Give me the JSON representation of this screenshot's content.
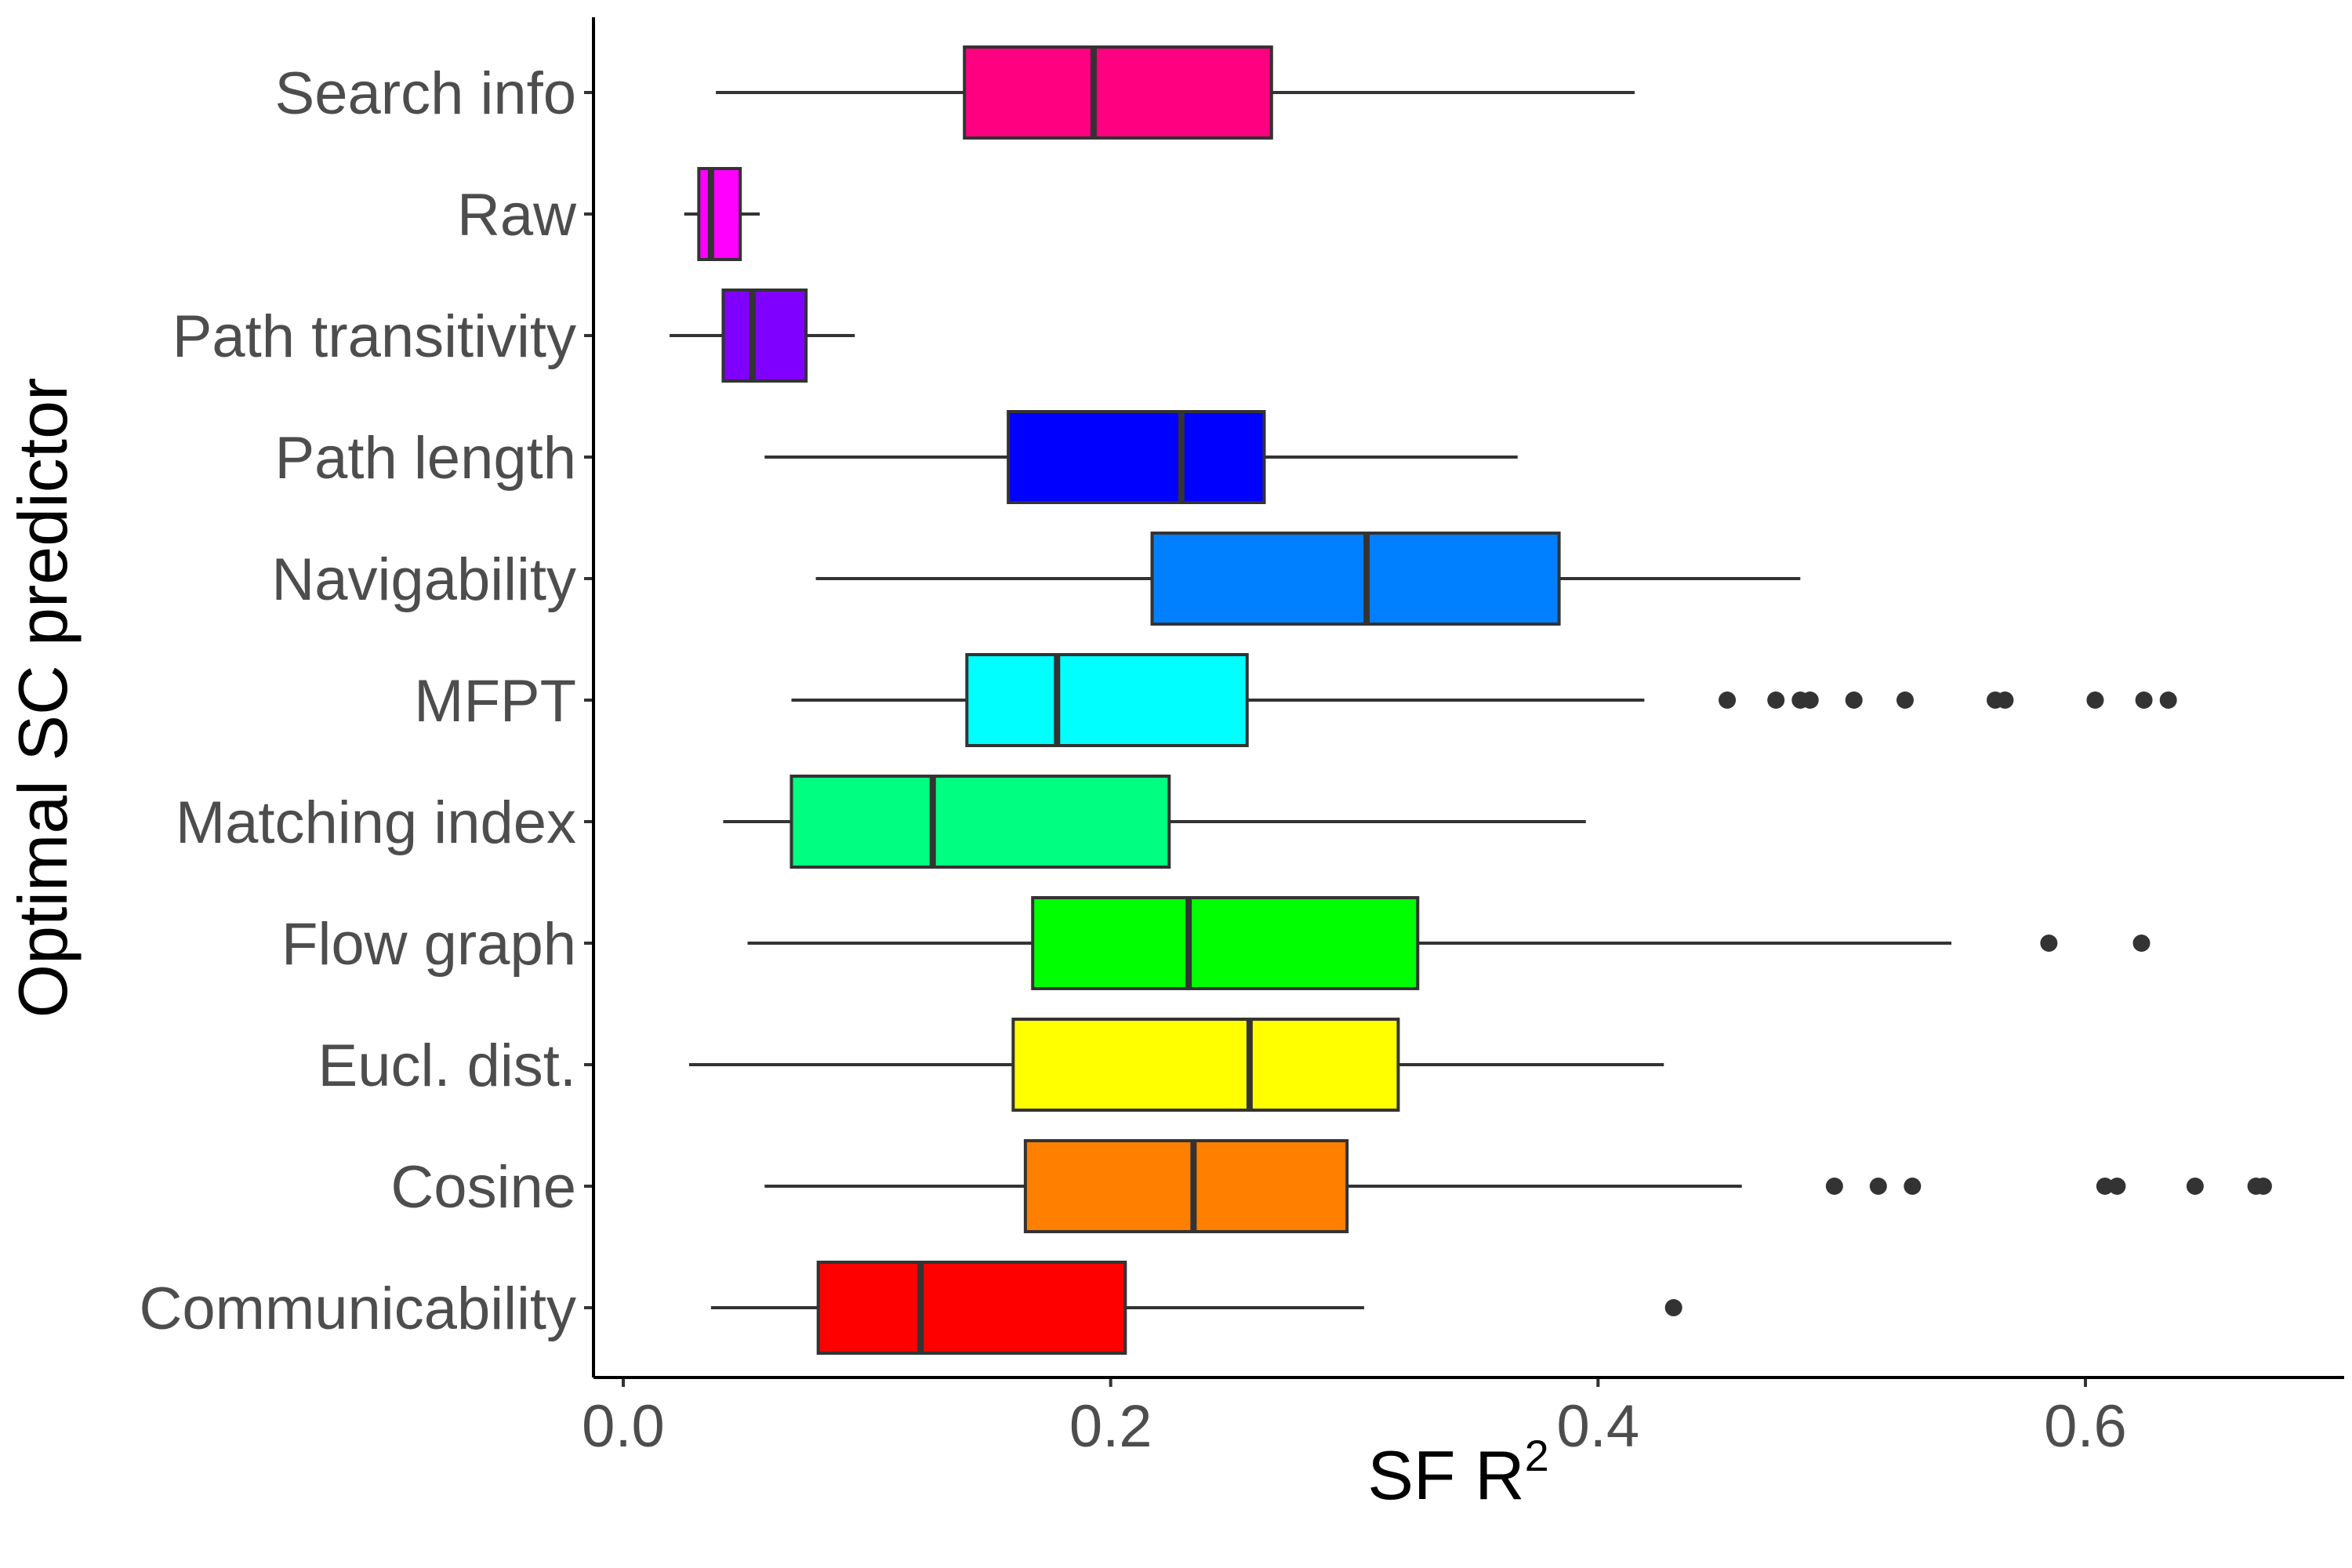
{
  "chart_data": {
    "type": "boxplot",
    "orientation": "horizontal",
    "xlabel": "SF R",
    "xlabel_superscript": "2",
    "ylabel": "Optimal SC predictor",
    "xlim": [
      -0.012,
      0.7
    ],
    "xticks": [
      0.0,
      0.2,
      0.4,
      0.6
    ],
    "xtick_labels": [
      "0.0",
      "0.2",
      "0.4",
      "0.6"
    ],
    "grid": false,
    "legend": "none",
    "categories": [
      "Search info",
      "Raw",
      "Path transitivity",
      "Path length",
      "Navigability",
      "MFPT",
      "Matching index",
      "Flow graph",
      "Eucl. dist.",
      "Cosine",
      "Communicability"
    ],
    "series": [
      {
        "category": "Search info",
        "color": "#FF0080",
        "whisker_low": 0.038,
        "q1": 0.14,
        "median": 0.193,
        "q3": 0.266,
        "whisker_high": 0.415,
        "outliers": []
      },
      {
        "category": "Raw",
        "color": "#FF00FF",
        "whisker_low": 0.025,
        "q1": 0.031,
        "median": 0.036,
        "q3": 0.048,
        "whisker_high": 0.056,
        "outliers": []
      },
      {
        "category": "Path transitivity",
        "color": "#8000FF",
        "whisker_low": 0.019,
        "q1": 0.041,
        "median": 0.053,
        "q3": 0.075,
        "whisker_high": 0.095,
        "outliers": []
      },
      {
        "category": "Path length",
        "color": "#0000FF",
        "whisker_low": 0.058,
        "q1": 0.158,
        "median": 0.229,
        "q3": 0.263,
        "whisker_high": 0.367,
        "outliers": []
      },
      {
        "category": "Navigability",
        "color": "#0080FF",
        "whisker_low": 0.079,
        "q1": 0.217,
        "median": 0.305,
        "q3": 0.384,
        "whisker_high": 0.483,
        "outliers": []
      },
      {
        "category": "MFPT",
        "color": "#00FFFF",
        "whisker_low": 0.069,
        "q1": 0.141,
        "median": 0.178,
        "q3": 0.256,
        "whisker_high": 0.419,
        "outliers": [
          0.453,
          0.473,
          0.483,
          0.487,
          0.505,
          0.526,
          0.563,
          0.567,
          0.604,
          0.624,
          0.634
        ]
      },
      {
        "category": "Matching index",
        "color": "#00FF80",
        "whisker_low": 0.041,
        "q1": 0.069,
        "median": 0.127,
        "q3": 0.224,
        "whisker_high": 0.395,
        "outliers": []
      },
      {
        "category": "Flow graph",
        "color": "#00FF00",
        "whisker_low": 0.051,
        "q1": 0.168,
        "median": 0.232,
        "q3": 0.326,
        "whisker_high": 0.545,
        "outliers": [
          0.585,
          0.623
        ]
      },
      {
        "category": "Eucl. dist.",
        "color": "#FFFF00",
        "whisker_low": 0.027,
        "q1": 0.16,
        "median": 0.257,
        "q3": 0.318,
        "whisker_high": 0.427,
        "outliers": []
      },
      {
        "category": "Cosine",
        "color": "#FF8000",
        "whisker_low": 0.058,
        "q1": 0.165,
        "median": 0.234,
        "q3": 0.297,
        "whisker_high": 0.459,
        "outliers": [
          0.497,
          0.515,
          0.529,
          0.608,
          0.613,
          0.645,
          0.67,
          0.673
        ]
      },
      {
        "category": "Communicability",
        "color": "#FF0000",
        "whisker_low": 0.036,
        "q1": 0.08,
        "median": 0.122,
        "q3": 0.206,
        "whisker_high": 0.304,
        "outliers": [
          0.431
        ]
      }
    ]
  }
}
